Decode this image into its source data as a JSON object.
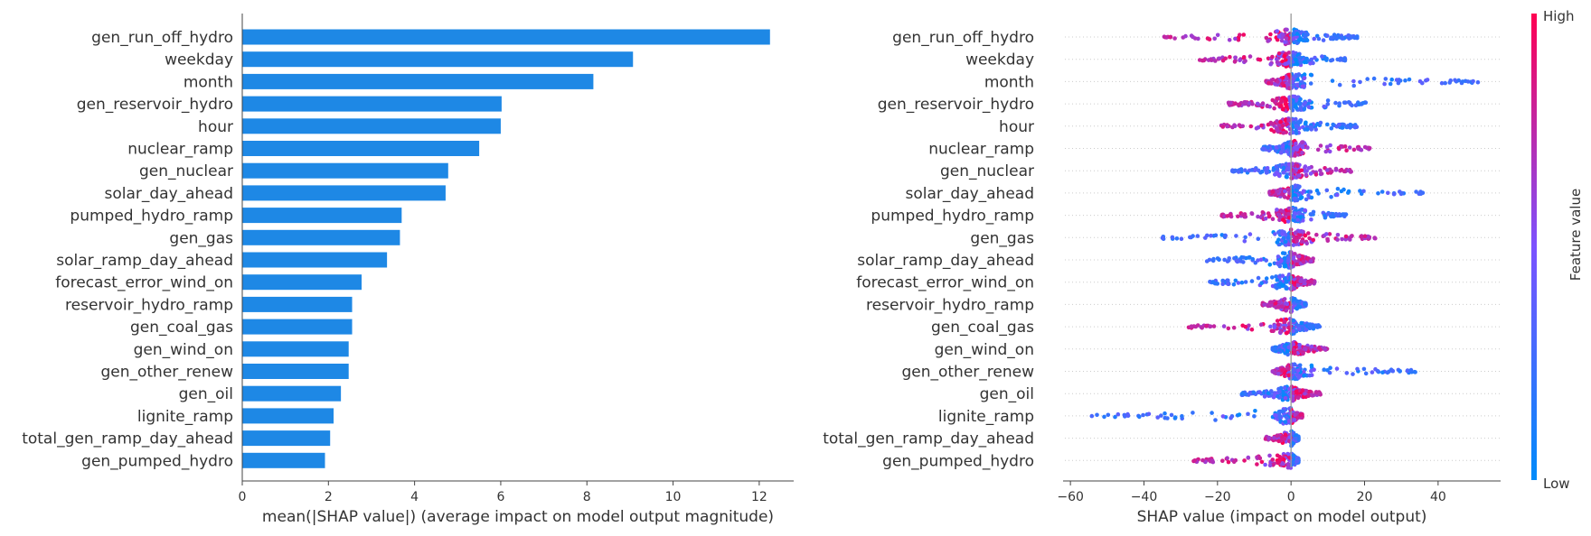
{
  "chart_data": [
    {
      "type": "bar",
      "xlabel": "mean(|SHAP value|) (average impact on model output magnitude)",
      "xlim": [
        0,
        12.8
      ],
      "xticks": [
        0,
        2,
        4,
        6,
        8,
        10,
        12
      ],
      "bar_color": "#1e88e5",
      "categories": [
        "gen_run_off_hydro",
        "weekday",
        "month",
        "gen_reservoir_hydro",
        "hour",
        "nuclear_ramp",
        "gen_nuclear",
        "solar_day_ahead",
        "pumped_hydro_ramp",
        "gen_gas",
        "solar_ramp_day_ahead",
        "forecast_error_wind_on",
        "reservoir_hydro_ramp",
        "gen_coal_gas",
        "gen_wind_on",
        "gen_other_renew",
        "gen_oil",
        "lignite_ramp",
        "total_gen_ramp_day_ahead",
        "gen_pumped_hydro"
      ],
      "values": [
        12.25,
        9.07,
        8.15,
        6.02,
        6.0,
        5.5,
        4.78,
        4.72,
        3.7,
        3.66,
        3.36,
        2.77,
        2.55,
        2.55,
        2.47,
        2.47,
        2.29,
        2.12,
        2.04,
        1.92
      ]
    },
    {
      "type": "scatter",
      "xlabel": "SHAP value (impact on model output)",
      "xlim": [
        -62,
        57
      ],
      "xticks": [
        -60,
        -40,
        -20,
        0,
        20,
        40
      ],
      "colorbar": {
        "high_label": "High",
        "low_label": "Low",
        "title": "Feature value",
        "high_color": "#ff0052",
        "low_color": "#008bfb"
      },
      "categories": [
        "gen_run_off_hydro",
        "weekday",
        "month",
        "gen_reservoir_hydro",
        "hour",
        "nuclear_ramp",
        "gen_nuclear",
        "solar_day_ahead",
        "pumped_hydro_ramp",
        "gen_gas",
        "solar_ramp_day_ahead",
        "forecast_error_wind_on",
        "reservoir_hydro_ramp",
        "gen_coal_gas",
        "gen_wind_on",
        "gen_other_renew",
        "gen_oil",
        "lignite_ramp",
        "total_gen_ramp_day_ahead",
        "gen_pumped_hydro"
      ],
      "ranges": [
        [
          -35,
          18
        ],
        [
          -25,
          15
        ],
        [
          -7,
          51
        ],
        [
          -17,
          21
        ],
        [
          -19,
          18
        ],
        [
          -8,
          22
        ],
        [
          -16,
          17
        ],
        [
          -6,
          36
        ],
        [
          -19,
          15
        ],
        [
          -35,
          23
        ],
        [
          -23,
          6
        ],
        [
          -24,
          7
        ],
        [
          -8,
          4
        ],
        [
          -29,
          8
        ],
        [
          -5,
          10
        ],
        [
          -5,
          36
        ],
        [
          -14,
          8
        ],
        [
          -57,
          3
        ],
        [
          -7,
          2
        ],
        [
          -27,
          2
        ]
      ],
      "high_side": [
        "left",
        "left",
        "left",
        "left",
        "left",
        "right",
        "right",
        "left",
        "left",
        "right",
        "right",
        "right",
        "left",
        "left",
        "right",
        "left",
        "right",
        "right",
        "left",
        "left"
      ]
    }
  ]
}
